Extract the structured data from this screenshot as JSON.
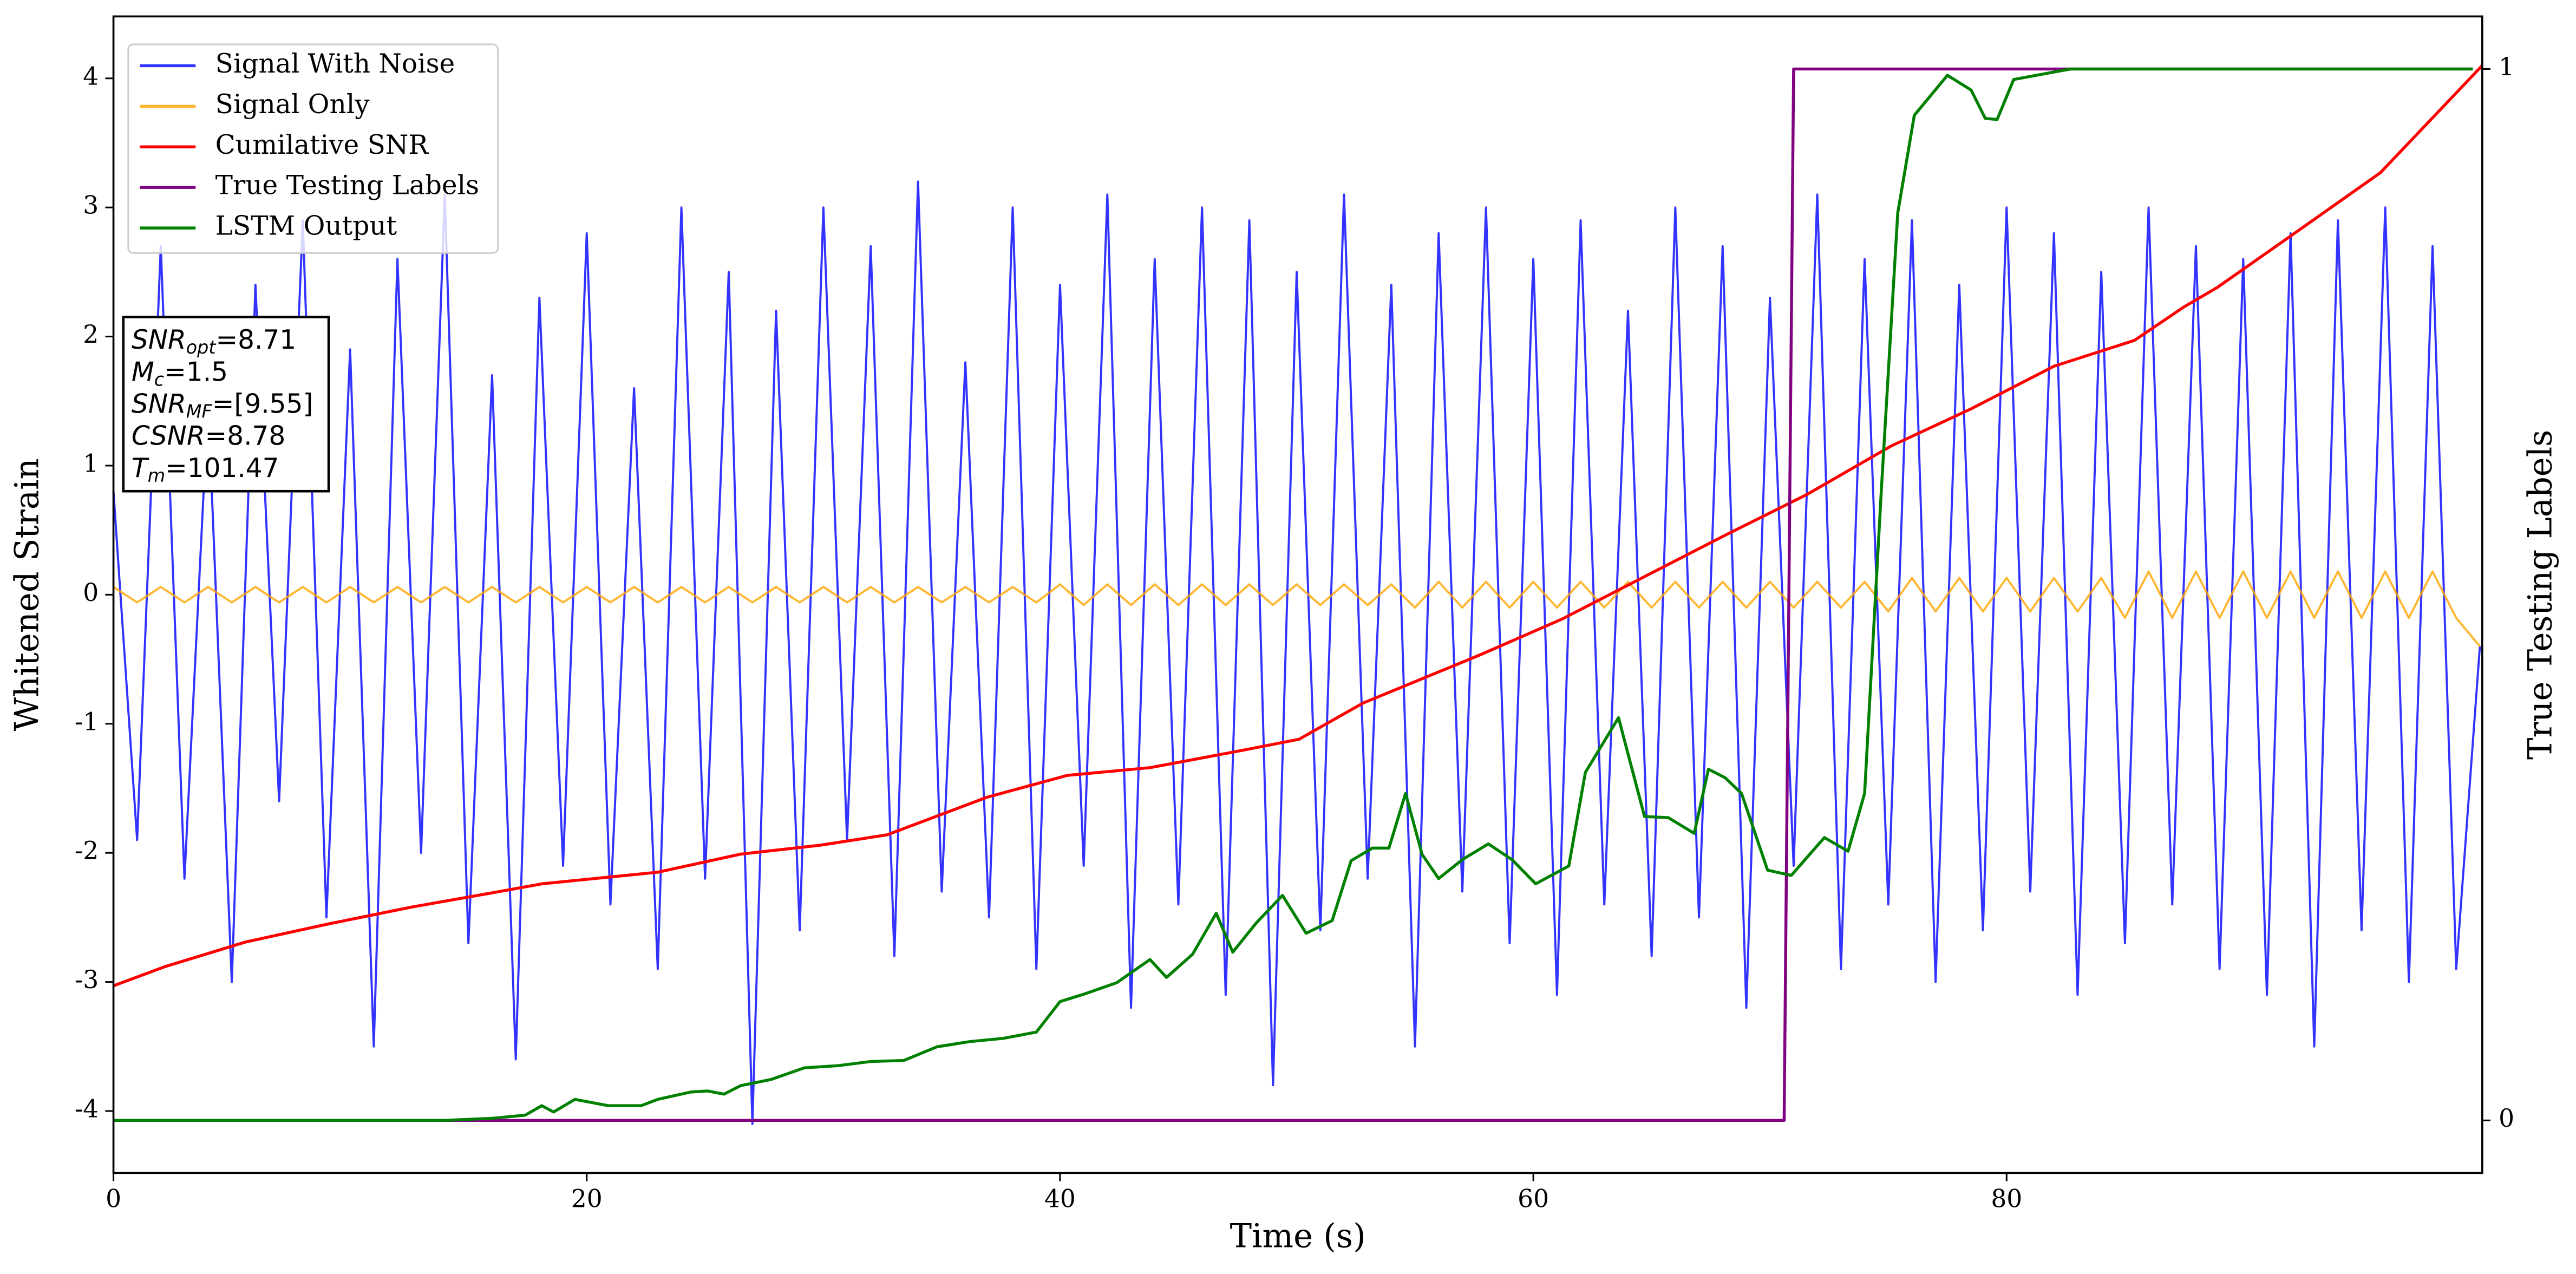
{
  "chart_data": {
    "type": "line",
    "xlabel": "Time (s)",
    "ylabel": "Whitened Strain",
    "y2label": "True Testing Labels",
    "xlim": [
      0,
      100.1
    ],
    "xticks": [
      0,
      20,
      40,
      60,
      80
    ],
    "ylim": [
      -4.48,
      4.48
    ],
    "yticks": [
      -4,
      -3,
      -2,
      -1,
      0,
      1,
      2,
      3,
      4
    ],
    "y2lim": [
      -0.05,
      1.05
    ],
    "y2ticks": [
      0,
      1
    ],
    "legend": "upper left",
    "annotation": [
      {
        "name": "SNR",
        "sub": "opt",
        "text": "=8.71"
      },
      {
        "name": "M",
        "sub": "c",
        "text": "=1.5"
      },
      {
        "name": "SNR",
        "sub": "MF",
        "text": "=[9.55]"
      },
      {
        "name": "CSNR",
        "sub": null,
        "text": "=8.78"
      },
      {
        "name": "T",
        "sub": "m",
        "text": "=101.47"
      }
    ],
    "series": [
      {
        "name": "Signal With Noise",
        "color": "#0000ff",
        "axis": "y",
        "x": [
          0,
          1,
          2,
          3,
          4,
          5,
          6,
          7,
          8,
          9,
          10,
          11,
          12,
          13,
          14,
          15,
          16,
          17,
          18,
          19,
          20,
          21,
          22,
          23,
          24,
          25,
          26,
          27,
          28,
          29,
          30,
          31,
          32,
          33,
          34,
          35,
          36,
          37,
          38,
          39,
          40,
          41,
          42,
          43,
          44,
          45,
          46,
          47,
          48,
          49,
          50,
          51,
          52,
          53,
          54,
          55,
          56,
          57,
          58,
          59,
          60,
          61,
          62,
          63,
          64,
          65,
          66,
          67,
          68,
          69,
          70,
          71,
          72,
          73,
          74,
          75,
          76,
          77,
          78,
          79,
          80,
          81,
          82,
          83,
          84,
          85,
          86,
          87,
          88,
          89,
          90,
          91,
          92,
          93,
          94,
          95,
          96,
          97,
          98,
          99,
          100
        ],
        "values": [
          0.8,
          -1.9,
          2.7,
          -2.2,
          1.5,
          -3.0,
          2.4,
          -1.6,
          2.9,
          -2.5,
          1.9,
          -3.5,
          2.6,
          -2.0,
          3.1,
          -2.7,
          1.7,
          -3.6,
          2.3,
          -2.1,
          2.8,
          -2.4,
          1.6,
          -2.9,
          3.0,
          -2.2,
          2.5,
          -4.1,
          2.2,
          -2.6,
          3.0,
          -1.9,
          2.7,
          -2.8,
          3.2,
          -2.3,
          1.8,
          -2.5,
          3.0,
          -2.9,
          2.4,
          -2.1,
          3.1,
          -3.2,
          2.6,
          -2.4,
          3.0,
          -3.1,
          2.9,
          -3.8,
          2.5,
          -2.6,
          3.1,
          -2.2,
          2.4,
          -3.5,
          2.8,
          -2.3,
          3.0,
          -2.7,
          2.6,
          -3.1,
          2.9,
          -2.4,
          2.2,
          -2.8,
          3.0,
          -2.5,
          2.7,
          -3.2,
          2.3,
          -2.1,
          3.1,
          -2.9,
          2.6,
          -2.4,
          2.9,
          -3.0,
          2.4,
          -2.6,
          3.0,
          -2.3,
          2.8,
          -3.1,
          2.5,
          -2.7,
          3.0,
          -2.4,
          2.7,
          -2.9,
          2.6,
          -3.1,
          2.8,
          -3.5,
          2.9,
          -2.6,
          3.0,
          -3.0,
          2.7,
          -2.9,
          -0.4
        ]
      },
      {
        "name": "Signal Only",
        "color": "#ffa500",
        "axis": "y",
        "x": [
          0,
          1,
          2,
          3,
          4,
          5,
          6,
          7,
          8,
          9,
          10,
          11,
          12,
          13,
          14,
          15,
          16,
          17,
          18,
          19,
          20,
          21,
          22,
          23,
          24,
          25,
          26,
          27,
          28,
          29,
          30,
          31,
          32,
          33,
          34,
          35,
          36,
          37,
          38,
          39,
          40,
          41,
          42,
          43,
          44,
          45,
          46,
          47,
          48,
          49,
          50,
          51,
          52,
          53,
          54,
          55,
          56,
          57,
          58,
          59,
          60,
          61,
          62,
          63,
          64,
          65,
          66,
          67,
          68,
          69,
          70,
          71,
          72,
          73,
          74,
          75,
          76,
          77,
          78,
          79,
          80,
          81,
          82,
          83,
          84,
          85,
          86,
          87,
          88,
          89,
          90,
          91,
          92,
          93,
          94,
          95,
          96,
          97,
          98,
          99,
          100
        ],
        "values": [
          0.06,
          -0.06,
          0.06,
          -0.06,
          0.06,
          -0.06,
          0.06,
          -0.06,
          0.06,
          -0.06,
          0.06,
          -0.06,
          0.06,
          -0.06,
          0.06,
          -0.06,
          0.06,
          -0.06,
          0.06,
          -0.06,
          0.06,
          -0.06,
          0.06,
          -0.06,
          0.06,
          -0.06,
          0.06,
          -0.06,
          0.06,
          -0.06,
          0.06,
          -0.06,
          0.06,
          -0.06,
          0.06,
          -0.06,
          0.06,
          -0.06,
          0.06,
          -0.06,
          0.08,
          -0.08,
          0.08,
          -0.08,
          0.08,
          -0.08,
          0.08,
          -0.08,
          0.08,
          -0.08,
          0.08,
          -0.08,
          0.08,
          -0.08,
          0.08,
          -0.1,
          0.1,
          -0.1,
          0.1,
          -0.1,
          0.1,
          -0.1,
          0.1,
          -0.1,
          0.1,
          -0.1,
          0.1,
          -0.1,
          0.1,
          -0.1,
          0.1,
          -0.1,
          0.1,
          -0.1,
          0.1,
          -0.13,
          0.13,
          -0.13,
          0.13,
          -0.13,
          0.13,
          -0.13,
          0.13,
          -0.13,
          0.13,
          -0.18,
          0.18,
          -0.18,
          0.18,
          -0.18,
          0.18,
          -0.18,
          0.18,
          -0.18,
          0.18,
          -0.18,
          0.18,
          -0.18,
          0.18,
          -0.18,
          -0.4
        ]
      },
      {
        "name": "Cumilative SNR",
        "color": "#ff0000",
        "axis": "y",
        "x": [
          0,
          2.2,
          5.6,
          9.1,
          12.6,
          16,
          18.1,
          23,
          26.5,
          29.9,
          32.7,
          36.9,
          40.3,
          43.8,
          47.3,
          50.1,
          52.8,
          57.7,
          61.2,
          64.7,
          68.1,
          71.6,
          75.1,
          78.5,
          82,
          85.4,
          87.5,
          88.9,
          92.4,
          95.8,
          100.1
        ],
        "values": [
          -3.03,
          -2.88,
          -2.69,
          -2.55,
          -2.42,
          -2.31,
          -2.24,
          -2.15,
          -2.01,
          -1.94,
          -1.86,
          -1.57,
          -1.4,
          -1.34,
          -1.22,
          -1.12,
          -0.84,
          -0.47,
          -0.19,
          0.14,
          0.46,
          0.78,
          1.15,
          1.44,
          1.77,
          1.97,
          2.23,
          2.38,
          2.83,
          3.27,
          4.1
        ]
      },
      {
        "name": "True Testing Labels",
        "color": "#800080",
        "axis": "y2",
        "x": [
          0,
          70.6,
          71.0,
          99.7
        ],
        "values": [
          0,
          0,
          1,
          1
        ]
      },
      {
        "name": "LSTM Output",
        "color": "#008000",
        "axis": "y2",
        "x": [
          0,
          14,
          16,
          17.4,
          18.1,
          18.6,
          19.5,
          20.9,
          22.3,
          23,
          24.4,
          25.1,
          25.8,
          26.5,
          27.8,
          29.2,
          30.6,
          32,
          33.4,
          34.8,
          36.2,
          37.6,
          39,
          40,
          41,
          42.4,
          43.8,
          44.5,
          45.6,
          46.6,
          47.3,
          48.3,
          49.4,
          50.4,
          51.5,
          52.3,
          53.2,
          53.9,
          54.6,
          55.3,
          56,
          57,
          58.1,
          59.1,
          60.1,
          61.5,
          62.2,
          63.6,
          64.7,
          65.7,
          66.8,
          67.4,
          68.1,
          68.8,
          69.9,
          70.9,
          72.3,
          73.3,
          74,
          74.7,
          75.4,
          76.1,
          77.5,
          78.5,
          79.1,
          79.6,
          80.3,
          82.7,
          99.7
        ],
        "values": [
          0,
          0,
          0.002,
          0.005,
          0.014,
          0.008,
          0.02,
          0.014,
          0.014,
          0.02,
          0.027,
          0.028,
          0.025,
          0.033,
          0.039,
          0.05,
          0.052,
          0.056,
          0.057,
          0.07,
          0.075,
          0.078,
          0.084,
          0.113,
          0.12,
          0.131,
          0.153,
          0.136,
          0.158,
          0.197,
          0.16,
          0.188,
          0.214,
          0.178,
          0.19,
          0.247,
          0.259,
          0.259,
          0.311,
          0.253,
          0.23,
          0.248,
          0.263,
          0.248,
          0.225,
          0.242,
          0.331,
          0.383,
          0.289,
          0.288,
          0.273,
          0.334,
          0.326,
          0.311,
          0.238,
          0.233,
          0.269,
          0.256,
          0.311,
          0.597,
          0.863,
          0.956,
          0.994,
          0.98,
          0.953,
          0.952,
          0.99,
          1.0,
          1.0
        ]
      }
    ]
  }
}
